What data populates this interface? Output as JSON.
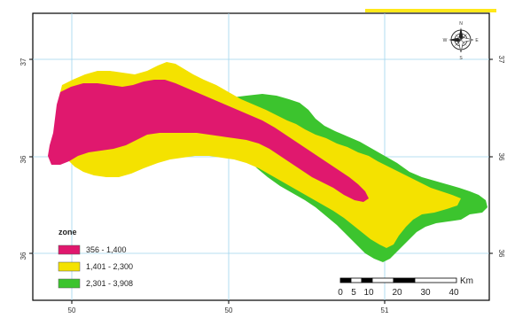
{
  "map": {
    "colors": {
      "zone_low": "#e0186e",
      "zone_mid": "#f4e200",
      "zone_high": "#3cc42e",
      "grid": "#9fd4ee",
      "frame": "#000000",
      "accent_bar": "#ffe81a"
    },
    "grid_labels": {
      "left": [
        "37",
        "36",
        "36"
      ],
      "right": [
        "37",
        "36",
        "36"
      ],
      "bottom": [
        "50",
        "50",
        "51"
      ]
    },
    "legend": {
      "title": "zone",
      "items": [
        {
          "label": "356 - 1,400",
          "color": "#e0186e"
        },
        {
          "label": "1,401 - 2,300",
          "color": "#f4e200"
        },
        {
          "label": "2,301 - 3,908",
          "color": "#3cc42e"
        }
      ]
    },
    "scale_bar": {
      "unit": "Km",
      "ticks": [
        "0",
        "5",
        "10",
        "20",
        "30",
        "40"
      ]
    },
    "north_arrow": {
      "icon": "compass-rose-icon",
      "labels": {
        "n": "N",
        "e": "E",
        "s": "S",
        "w": "W"
      }
    }
  }
}
